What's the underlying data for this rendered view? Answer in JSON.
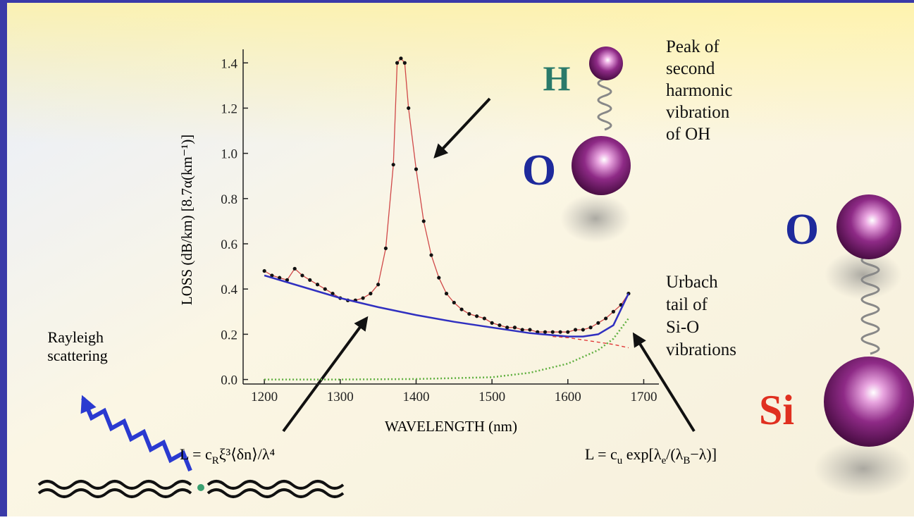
{
  "chart_data": {
    "type": "line",
    "xlabel": "WAVELENGTH (nm)",
    "ylabel": "LOSS (dB/km) [8.7α(km⁻¹)]",
    "xlim": [
      1172,
      1720
    ],
    "ylim": [
      -0.02,
      1.46
    ],
    "xticks": [
      1200,
      1300,
      1400,
      1500,
      1600,
      1700
    ],
    "yticks": [
      {
        "value": 0,
        "label": "0.0"
      },
      0.2,
      0.4,
      0.6,
      0.8,
      {
        "value": 1,
        "label": "1.0"
      },
      1.2,
      1.4
    ],
    "series": [
      {
        "color": "#d04848",
        "marker_color": "#111111",
        "style": "solid-markers",
        "x": [
          1200,
          1210,
          1220,
          1230,
          1240,
          1250,
          1260,
          1270,
          1280,
          1290,
          1300,
          1310,
          1320,
          1330,
          1340,
          1350,
          1360,
          1370,
          1375,
          1380,
          1385,
          1390,
          1400,
          1410,
          1420,
          1430,
          1440,
          1450,
          1460,
          1470,
          1480,
          1490,
          1500,
          1510,
          1520,
          1530,
          1540,
          1550,
          1560,
          1570,
          1580,
          1590,
          1600,
          1610,
          1620,
          1630,
          1640,
          1650,
          1660,
          1670,
          1680
        ],
        "values": [
          0.48,
          0.46,
          0.45,
          0.44,
          0.49,
          0.46,
          0.44,
          0.42,
          0.4,
          0.38,
          0.36,
          0.35,
          0.35,
          0.36,
          0.38,
          0.42,
          0.58,
          0.95,
          1.4,
          1.42,
          1.4,
          1.2,
          0.93,
          0.7,
          0.55,
          0.45,
          0.38,
          0.34,
          0.31,
          0.29,
          0.28,
          0.27,
          0.25,
          0.24,
          0.23,
          0.23,
          0.22,
          0.22,
          0.21,
          0.21,
          0.21,
          0.21,
          0.21,
          0.22,
          0.22,
          0.23,
          0.25,
          0.27,
          0.3,
          0.33,
          0.38
        ]
      },
      {
        "color": "#3030c0",
        "style": "solid",
        "x": [
          1200,
          1250,
          1300,
          1350,
          1400,
          1450,
          1500,
          1550,
          1600,
          1620,
          1640,
          1660,
          1680
        ],
        "values": [
          0.46,
          0.41,
          0.36,
          0.32,
          0.285,
          0.255,
          0.23,
          0.205,
          0.19,
          0.19,
          0.2,
          0.24,
          0.38
        ]
      },
      {
        "color": "#e03030",
        "style": "dashed",
        "x": [
          1580,
          1600,
          1620,
          1640,
          1660,
          1680
        ],
        "values": [
          0.19,
          0.185,
          0.175,
          0.165,
          0.155,
          0.14
        ]
      },
      {
        "color": "#60b040",
        "style": "dotted",
        "x": [
          1200,
          1300,
          1400,
          1500,
          1550,
          1600,
          1640,
          1660,
          1680
        ],
        "values": [
          0.0,
          0.0,
          0.002,
          0.01,
          0.03,
          0.07,
          0.13,
          0.18,
          0.27
        ]
      }
    ],
    "annotations": {
      "peak": [
        "Peak of",
        "second",
        "harmonic",
        "vibration",
        "of OH"
      ],
      "urbach": [
        "Urbach",
        "tail of",
        "Si-O",
        "vibrations"
      ],
      "rayleigh": [
        "Rayleigh",
        "scattering"
      ],
      "formula_rayleigh": [
        "L = c",
        "R",
        "ξ³⟨δn⟩/λ⁴"
      ],
      "formula_urbach": [
        "L = c",
        "u",
        " exp[λ",
        "e",
        "/(λ",
        "B",
        "−λ)]"
      ],
      "atoms": [
        "H",
        "O",
        "O",
        "Si"
      ]
    }
  }
}
